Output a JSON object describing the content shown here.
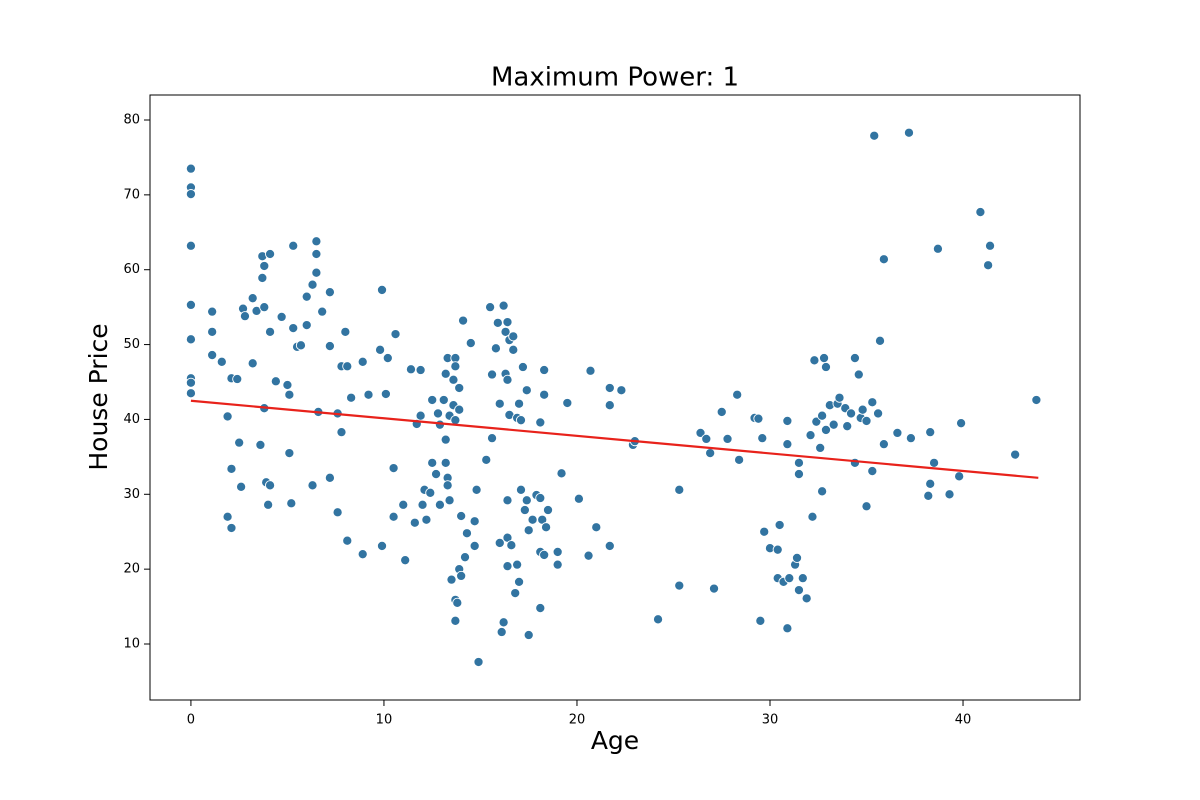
{
  "chart_data": {
    "type": "scatter",
    "title": "Maximum Power: 1",
    "x_label": "Age",
    "y_label": "House Price",
    "xlim": [
      -2.12,
      46.06
    ],
    "ylim": [
      2.52,
      83.34
    ],
    "xticks": [
      0,
      10,
      20,
      30,
      40
    ],
    "yticks": [
      10,
      20,
      30,
      40,
      50,
      60,
      70,
      80
    ],
    "points": {
      "color": "#3274a1",
      "edge_color": "#ffffff",
      "x": [
        0,
        0,
        0,
        0,
        0,
        0,
        0,
        0,
        0,
        1.1,
        1.1,
        1.1,
        1.6,
        1.9,
        1.9,
        2.1,
        2.1,
        2.1,
        2.4,
        2.5,
        2.7,
        2.8,
        2.6,
        3.2,
        3.2,
        3.4,
        3.6,
        3.7,
        3.8,
        3.7,
        3.8,
        3.8,
        3.9,
        4,
        4.1,
        4.1,
        4.1,
        4.4,
        4.7,
        5,
        5.1,
        5.1,
        5.2,
        5.3,
        5.3,
        5.5,
        5.7,
        6,
        6,
        6.3,
        6.5,
        6.5,
        6.5,
        6.3,
        6.6,
        6.8,
        7.2,
        7.2,
        7.2,
        7.6,
        7.6,
        7.8,
        7.8,
        8,
        8.1,
        8.1,
        8.3,
        8.9,
        8.9,
        9.2,
        9.8,
        9.9,
        9.9,
        10.1,
        10.2,
        10.5,
        10.6,
        10.5,
        11,
        11.1,
        11.4,
        11.6,
        11.7,
        11.9,
        11.9,
        12,
        12.1,
        12.2,
        12.4,
        12.5,
        12.5,
        12.7,
        12.8,
        12.9,
        12.9,
        13.1,
        13.2,
        13.2,
        13.3,
        13.2,
        13.3,
        13.3,
        13.4,
        13.4,
        13.6,
        13.7,
        13.7,
        13.6,
        13.7,
        13.5,
        13.7,
        13.8,
        13.7,
        13.9,
        14,
        13.9,
        13.9,
        14,
        14.1,
        14.2,
        14.3,
        14.5,
        14.7,
        14.7,
        14.8,
        14.9,
        15.3,
        15.5,
        15.6,
        15.6,
        15.8,
        15.9,
        16,
        16,
        16.1,
        16.2,
        16.2,
        16.3,
        16.3,
        16.4,
        16.4,
        16.4,
        16.4,
        16.4,
        16.5,
        16.5,
        16.6,
        16.7,
        16.7,
        16.8,
        16.9,
        17,
        16.9,
        17,
        17.1,
        17.1,
        17.2,
        17.3,
        17.4,
        17.4,
        17.5,
        17.5,
        17.7,
        17.9,
        18.1,
        18.1,
        18.1,
        18.1,
        18.2,
        18.3,
        18.3,
        18.3,
        18.5,
        18.4,
        19,
        19,
        19.2,
        19.5,
        20.1,
        20.6,
        20.7,
        21,
        21.7,
        21.7,
        21.7,
        22.3,
        22.9,
        23,
        24.2,
        25.3,
        25.3,
        26.4,
        26.7,
        26.9,
        27.1,
        27.5,
        27.8,
        28.3,
        28.4,
        29.2,
        29.4,
        29.5,
        29.7,
        29.6,
        30,
        30.4,
        30.5,
        30.4,
        30.7,
        30.9,
        30.9,
        31,
        30.9,
        31.3,
        31.4,
        31.5,
        31.5,
        31.5,
        31.7,
        31.9,
        32.1,
        32.2,
        32.3,
        32.4,
        32.6,
        32.7,
        32.7,
        32.8,
        32.9,
        32.9,
        33.1,
        33.3,
        33.5,
        33.6,
        33.9,
        34,
        34.2,
        34.4,
        34.4,
        34.6,
        34.7,
        34.8,
        35,
        35,
        35.3,
        35.3,
        35.4,
        35.6,
        35.7,
        35.9,
        35.9,
        36.6,
        37.2,
        37.3,
        38.3,
        38.2,
        38.3,
        38.5,
        38.7,
        39.3,
        39.8,
        39.9,
        40.9,
        41.4,
        41.3,
        42.7,
        43.8
      ],
      "y": [
        73.5,
        71,
        70.1,
        63.2,
        55.3,
        50.7,
        45.5,
        44.9,
        43.5,
        54.4,
        51.7,
        48.6,
        47.7,
        40.4,
        27,
        25.5,
        33.4,
        45.5,
        45.4,
        36.9,
        54.8,
        53.8,
        31,
        56.2,
        47.5,
        54.5,
        36.6,
        61.8,
        60.5,
        58.9,
        55,
        41.5,
        31.6,
        28.6,
        62.1,
        31.2,
        51.7,
        45.1,
        53.7,
        44.6,
        43.3,
        35.5,
        28.8,
        63.2,
        52.2,
        49.7,
        49.9,
        56.4,
        52.6,
        58,
        59.6,
        62.1,
        63.8,
        31.2,
        41,
        54.4,
        57,
        49.8,
        32.2,
        40.8,
        27.6,
        38.3,
        47.1,
        51.7,
        23.8,
        47.1,
        42.9,
        47.7,
        22,
        43.3,
        49.3,
        23.1,
        57.3,
        43.4,
        48.2,
        33.5,
        51.4,
        27,
        28.6,
        21.2,
        46.7,
        26.2,
        39.4,
        46.6,
        40.5,
        28.6,
        30.6,
        26.6,
        30.2,
        34.2,
        42.6,
        32.7,
        40.8,
        28.6,
        39.3,
        42.6,
        37.3,
        34.2,
        32.2,
        46.1,
        48.2,
        31.2,
        29.2,
        40.5,
        45.3,
        48.2,
        47.1,
        41.9,
        39.9,
        18.6,
        15.9,
        15.5,
        13.1,
        20,
        19.1,
        41.3,
        44.2,
        27.1,
        53.2,
        21.6,
        24.8,
        50.2,
        26.4,
        23.1,
        30.6,
        7.6,
        34.6,
        55,
        37.5,
        46,
        49.5,
        52.9,
        42.1,
        23.5,
        11.6,
        12.9,
        55.2,
        46.1,
        51.7,
        45.3,
        20.4,
        24.2,
        29.2,
        53,
        50.6,
        40.6,
        23.2,
        49.3,
        51.1,
        16.8,
        20.6,
        18.3,
        40.2,
        42.1,
        30.6,
        39.9,
        47,
        27.9,
        29.2,
        43.9,
        11.2,
        25.2,
        26.6,
        29.9,
        22.3,
        39.6,
        14.8,
        29.5,
        26.6,
        43.3,
        46.6,
        21.9,
        27.9,
        25.6,
        20.6,
        22.3,
        32.8,
        42.2,
        29.4,
        21.8,
        46.5,
        25.6,
        23.1,
        44.2,
        41.9,
        43.9,
        36.6,
        37.1,
        13.3,
        30.6,
        17.8,
        38.2,
        37.4,
        35.5,
        17.4,
        41,
        37.4,
        43.3,
        34.6,
        40.2,
        40.1,
        13.1,
        25,
        37.5,
        22.8,
        22.6,
        25.9,
        18.8,
        18.3,
        36.7,
        12.1,
        18.8,
        39.8,
        20.6,
        21.5,
        17.2,
        34.2,
        32.7,
        18.8,
        16.1,
        37.9,
        27,
        47.9,
        39.7,
        36.2,
        40.5,
        30.4,
        48.2,
        47,
        38.6,
        41.9,
        39.3,
        42.1,
        42.9,
        41.5,
        39.1,
        40.8,
        48.2,
        34.2,
        46,
        40.2,
        41.3,
        39.8,
        28.4,
        42.3,
        33.1,
        77.9,
        40.8,
        50.5,
        36.7,
        61.4,
        38.2,
        78.3,
        37.5,
        38.3,
        29.8,
        31.4,
        34.2,
        62.8,
        30,
        32.4,
        39.5,
        67.7,
        63.2,
        60.6,
        35.3,
        42.6
      ]
    },
    "fit_line": {
      "color": "#e8221b",
      "x": [
        0,
        43.9
      ],
      "y": [
        42.5,
        32.2
      ]
    }
  }
}
